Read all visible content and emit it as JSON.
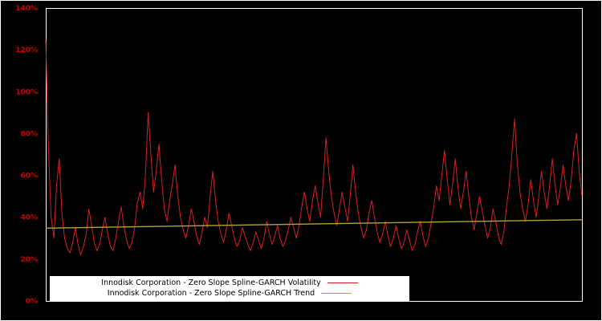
{
  "chart_data": {
    "type": "line",
    "title": "",
    "xlabel": "",
    "ylabel": "",
    "ylim": [
      0,
      140
    ],
    "y_ticks": [
      0,
      20,
      40,
      60,
      80,
      100,
      120,
      140
    ],
    "y_tick_labels": [
      "0%",
      "20%",
      "40%",
      "60%",
      "80%",
      "100%",
      "120%",
      "140%"
    ],
    "x_tick_labels_visible": false,
    "grid": false,
    "background": "#000000",
    "frame_color": "#ffffff",
    "tick_label_color": "#cc0000",
    "legend": {
      "position": "bottom-center",
      "background": "#ffffff",
      "text_color": "#000000"
    },
    "series": [
      {
        "name": "Innodisk Corporation - Zero Slope Spline-GARCH Volatility",
        "color": "#d62020",
        "values": [
          125,
          72,
          40,
          30,
          55,
          68,
          42,
          30,
          25,
          23,
          28,
          35,
          27,
          22,
          26,
          32,
          44,
          36,
          28,
          24,
          27,
          34,
          40,
          32,
          26,
          24,
          30,
          38,
          45,
          36,
          29,
          25,
          28,
          35,
          47,
          52,
          44,
          60,
          90,
          70,
          52,
          62,
          75,
          58,
          44,
          38,
          48,
          56,
          65,
          50,
          40,
          34,
          30,
          36,
          44,
          38,
          31,
          27,
          33,
          40,
          35,
          50,
          62,
          48,
          38,
          32,
          28,
          34,
          42,
          36,
          30,
          26,
          29,
          35,
          31,
          27,
          24,
          28,
          33,
          29,
          25,
          30,
          38,
          32,
          27,
          31,
          36,
          30,
          26,
          29,
          34,
          40,
          35,
          30,
          36,
          45,
          52,
          44,
          38,
          48,
          55,
          47,
          40,
          58,
          78,
          62,
          50,
          42,
          36,
          44,
          52,
          45,
          38,
          50,
          65,
          52,
          42,
          35,
          30,
          34,
          42,
          48,
          40,
          33,
          28,
          32,
          38,
          31,
          26,
          30,
          36,
          30,
          25,
          28,
          34,
          29,
          24,
          27,
          33,
          38,
          31,
          26,
          30,
          37,
          45,
          55,
          48,
          60,
          72,
          58,
          46,
          56,
          68,
          54,
          44,
          52,
          62,
          50,
          40,
          34,
          42,
          50,
          43,
          36,
          30,
          35,
          44,
          38,
          31,
          27,
          33,
          45,
          55,
          70,
          87,
          66,
          52,
          44,
          38,
          46,
          58,
          48,
          40,
          50,
          62,
          52,
          44,
          55,
          68,
          56,
          46,
          54,
          65,
          55,
          48,
          58,
          72,
          80,
          62,
          50
        ]
      },
      {
        "name": "Innodisk Corporation - Zero Slope Spline-GARCH Trend",
        "color": "#b5a33a",
        "values": [
          34.8,
          38.8
        ]
      }
    ]
  }
}
